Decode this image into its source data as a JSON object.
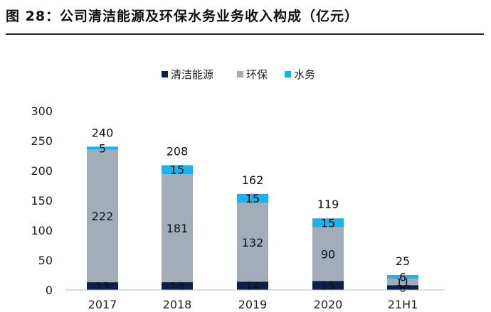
{
  "title": "图 28：公司清洁能源及环保水务业务收入构成（亿元）",
  "chart_data": {
    "type": "bar",
    "stacked": true,
    "title": "图 28：公司清洁能源及环保水务业务收入构成（亿元）",
    "categories": [
      "2017",
      "2018",
      "2019",
      "2020",
      "21H1"
    ],
    "series": [
      {
        "name": "清洁能源",
        "color": "#0d1f4a",
        "values": [
          13,
          13,
          14,
          15,
          8
        ]
      },
      {
        "name": "环保",
        "color": "#a3adba",
        "values": [
          222,
          181,
          132,
          90,
          11
        ]
      },
      {
        "name": "水务",
        "color": "#1cb2ec",
        "values": [
          5,
          15,
          15,
          15,
          6
        ]
      }
    ],
    "data_labels": [
      [
        "13",
        "13",
        "14",
        "15",
        "8"
      ],
      [
        "222",
        "181",
        "132",
        "90",
        "11"
      ],
      [
        "5",
        "15",
        "15",
        "15",
        "6"
      ]
    ],
    "totals": [
      240,
      208,
      162,
      119,
      25
    ],
    "yticks": [
      0,
      50,
      100,
      150,
      200,
      250,
      300
    ],
    "ylim": [
      0,
      300
    ],
    "grid": false,
    "legend_position": "top-center"
  }
}
